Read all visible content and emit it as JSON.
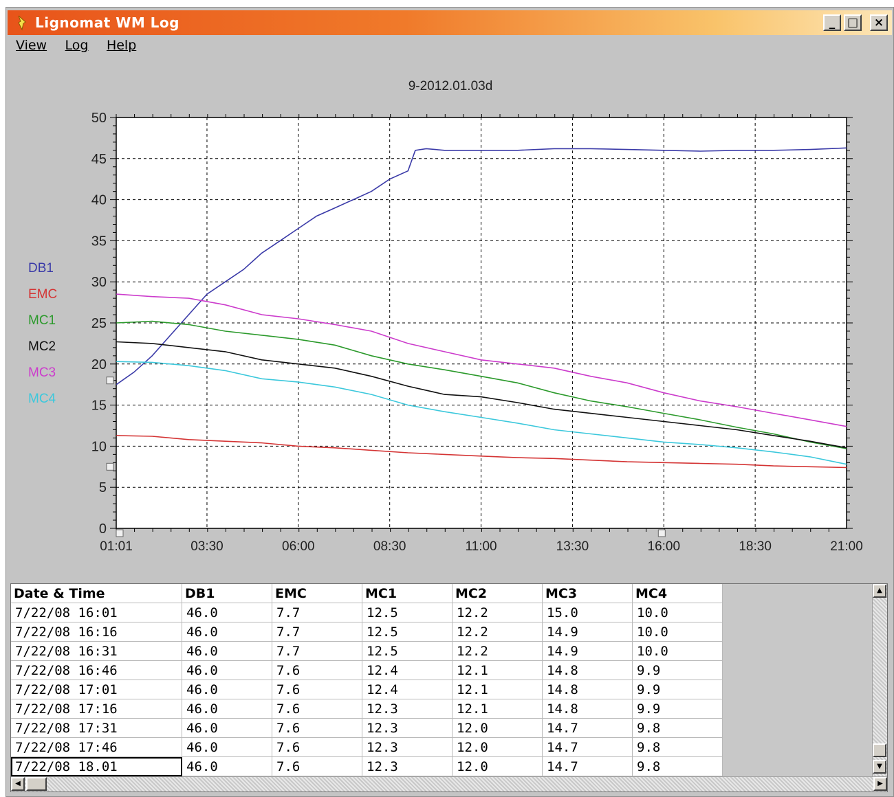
{
  "window": {
    "title": "Lignomat WM Log",
    "minimize_label": "_",
    "maximize_label": "□",
    "close_label": "×"
  },
  "menu": [
    {
      "label": "View"
    },
    {
      "label": "Log"
    },
    {
      "label": "Help"
    }
  ],
  "chart_data": {
    "type": "line",
    "title": "9-2012.01.03d",
    "xlabel": "",
    "ylabel": "",
    "x_tick_labels": [
      "01:01",
      "03:30",
      "06:00",
      "08:30",
      "11:00",
      "13:30",
      "16:00",
      "18:30",
      "21:00"
    ],
    "x_range_hours": [
      1.0167,
      21.0
    ],
    "ylim": [
      0,
      50
    ],
    "y_ticks": [
      0,
      5,
      10,
      15,
      20,
      25,
      30,
      35,
      40,
      45,
      50
    ],
    "grid": true,
    "legend_position": "left",
    "series": [
      {
        "name": "DB1",
        "color": "#3a3aa8",
        "x": [
          1.02,
          1.5,
          2.0,
          2.5,
          3.0,
          3.5,
          4.0,
          4.5,
          5.0,
          5.5,
          6.0,
          6.5,
          7.0,
          7.5,
          8.0,
          8.5,
          9.0,
          9.2,
          9.5,
          10.0,
          11.0,
          12.0,
          13.0,
          14.0,
          15.0,
          16.0,
          17.0,
          18.0,
          19.0,
          20.0,
          21.0
        ],
        "y": [
          17.5,
          19.0,
          21.0,
          23.5,
          26.0,
          28.5,
          30.0,
          31.5,
          33.5,
          35.0,
          36.5,
          38.0,
          39.0,
          40.0,
          41.0,
          42.5,
          43.5,
          46.0,
          46.2,
          46.0,
          46.0,
          46.0,
          46.2,
          46.2,
          46.1,
          46.0,
          45.9,
          46.0,
          46.0,
          46.1,
          46.3
        ]
      },
      {
        "name": "EMC",
        "color": "#d43434",
        "x": [
          1.02,
          2.0,
          3.0,
          4.0,
          5.0,
          6.0,
          7.0,
          8.0,
          9.0,
          10.0,
          11.0,
          12.0,
          13.0,
          14.0,
          15.0,
          16.0,
          17.0,
          18.0,
          19.0,
          20.0,
          21.0
        ],
        "y": [
          11.3,
          11.2,
          10.8,
          10.6,
          10.4,
          10.0,
          9.8,
          9.5,
          9.2,
          9.0,
          8.8,
          8.6,
          8.5,
          8.3,
          8.1,
          8.0,
          7.9,
          7.8,
          7.6,
          7.5,
          7.4
        ]
      },
      {
        "name": "MC1",
        "color": "#2c9a2c",
        "x": [
          1.02,
          2.0,
          3.0,
          4.0,
          5.0,
          6.0,
          7.0,
          8.0,
          9.0,
          10.0,
          11.0,
          12.0,
          13.0,
          14.0,
          15.0,
          16.0,
          17.0,
          18.0,
          19.0,
          20.0,
          21.0
        ],
        "y": [
          25.0,
          25.2,
          24.8,
          24.0,
          23.5,
          23.0,
          22.3,
          21.0,
          20.0,
          19.3,
          18.5,
          17.7,
          16.5,
          15.5,
          14.8,
          14.0,
          13.2,
          12.3,
          11.5,
          10.5,
          9.7
        ]
      },
      {
        "name": "MC2",
        "color": "#111111",
        "x": [
          1.02,
          2.0,
          3.0,
          4.0,
          5.0,
          6.0,
          7.0,
          8.0,
          9.0,
          10.0,
          11.0,
          12.0,
          13.0,
          14.0,
          15.0,
          16.0,
          17.0,
          18.0,
          19.0,
          20.0,
          21.0
        ],
        "y": [
          22.7,
          22.5,
          22.0,
          21.5,
          20.5,
          20.0,
          19.5,
          18.5,
          17.3,
          16.3,
          16.0,
          15.3,
          14.5,
          14.0,
          13.5,
          13.0,
          12.5,
          12.0,
          11.3,
          10.6,
          9.8
        ]
      },
      {
        "name": "MC3",
        "color": "#cc3ccc",
        "x": [
          1.02,
          2.0,
          3.0,
          4.0,
          5.0,
          6.0,
          7.0,
          8.0,
          9.0,
          10.0,
          11.0,
          12.0,
          13.0,
          14.0,
          15.0,
          16.0,
          17.0,
          18.0,
          19.0,
          20.0,
          21.0
        ],
        "y": [
          28.5,
          28.2,
          28.0,
          27.2,
          26.0,
          25.5,
          24.8,
          24.0,
          22.5,
          21.5,
          20.5,
          20.0,
          19.5,
          18.5,
          17.7,
          16.5,
          15.5,
          14.8,
          14.0,
          13.2,
          12.4
        ]
      },
      {
        "name": "MC4",
        "color": "#3cc8dc",
        "x": [
          1.02,
          2.0,
          3.0,
          4.0,
          5.0,
          6.0,
          7.0,
          8.0,
          9.0,
          10.0,
          11.0,
          12.0,
          13.0,
          14.0,
          15.0,
          16.0,
          17.0,
          18.0,
          19.0,
          20.0,
          21.0
        ],
        "y": [
          20.3,
          20.2,
          19.8,
          19.2,
          18.2,
          17.8,
          17.2,
          16.3,
          15.0,
          14.2,
          13.5,
          12.8,
          12.0,
          11.5,
          11.0,
          10.5,
          10.2,
          9.8,
          9.3,
          8.7,
          7.8
        ]
      }
    ]
  },
  "table": {
    "headers": [
      "Date & Time",
      "DB1",
      "EMC",
      "MC1",
      "MC2",
      "MC3",
      "MC4"
    ],
    "rows": [
      [
        "7/22/08 16:01",
        "46.0",
        "7.7",
        "12.5",
        "12.2",
        "15.0",
        "10.0"
      ],
      [
        "7/22/08 16:16",
        "46.0",
        "7.7",
        "12.5",
        "12.2",
        "14.9",
        "10.0"
      ],
      [
        "7/22/08 16:31",
        "46.0",
        "7.7",
        "12.5",
        "12.2",
        "14.9",
        "10.0"
      ],
      [
        "7/22/08 16:46",
        "46.0",
        "7.6",
        "12.4",
        "12.1",
        "14.8",
        "9.9"
      ],
      [
        "7/22/08 17:01",
        "46.0",
        "7.6",
        "12.4",
        "12.1",
        "14.8",
        "9.9"
      ],
      [
        "7/22/08 17:16",
        "46.0",
        "7.6",
        "12.3",
        "12.1",
        "14.8",
        "9.9"
      ],
      [
        "7/22/08 17:31",
        "46.0",
        "7.6",
        "12.3",
        "12.0",
        "14.7",
        "9.8"
      ],
      [
        "7/22/08 17:46",
        "46.0",
        "7.6",
        "12.3",
        "12.0",
        "14.7",
        "9.8"
      ],
      [
        "7/22/08 18.01",
        "46.0",
        "7.6",
        "12.3",
        "12.0",
        "14.7",
        "9.8"
      ]
    ],
    "selected_row": 8
  }
}
